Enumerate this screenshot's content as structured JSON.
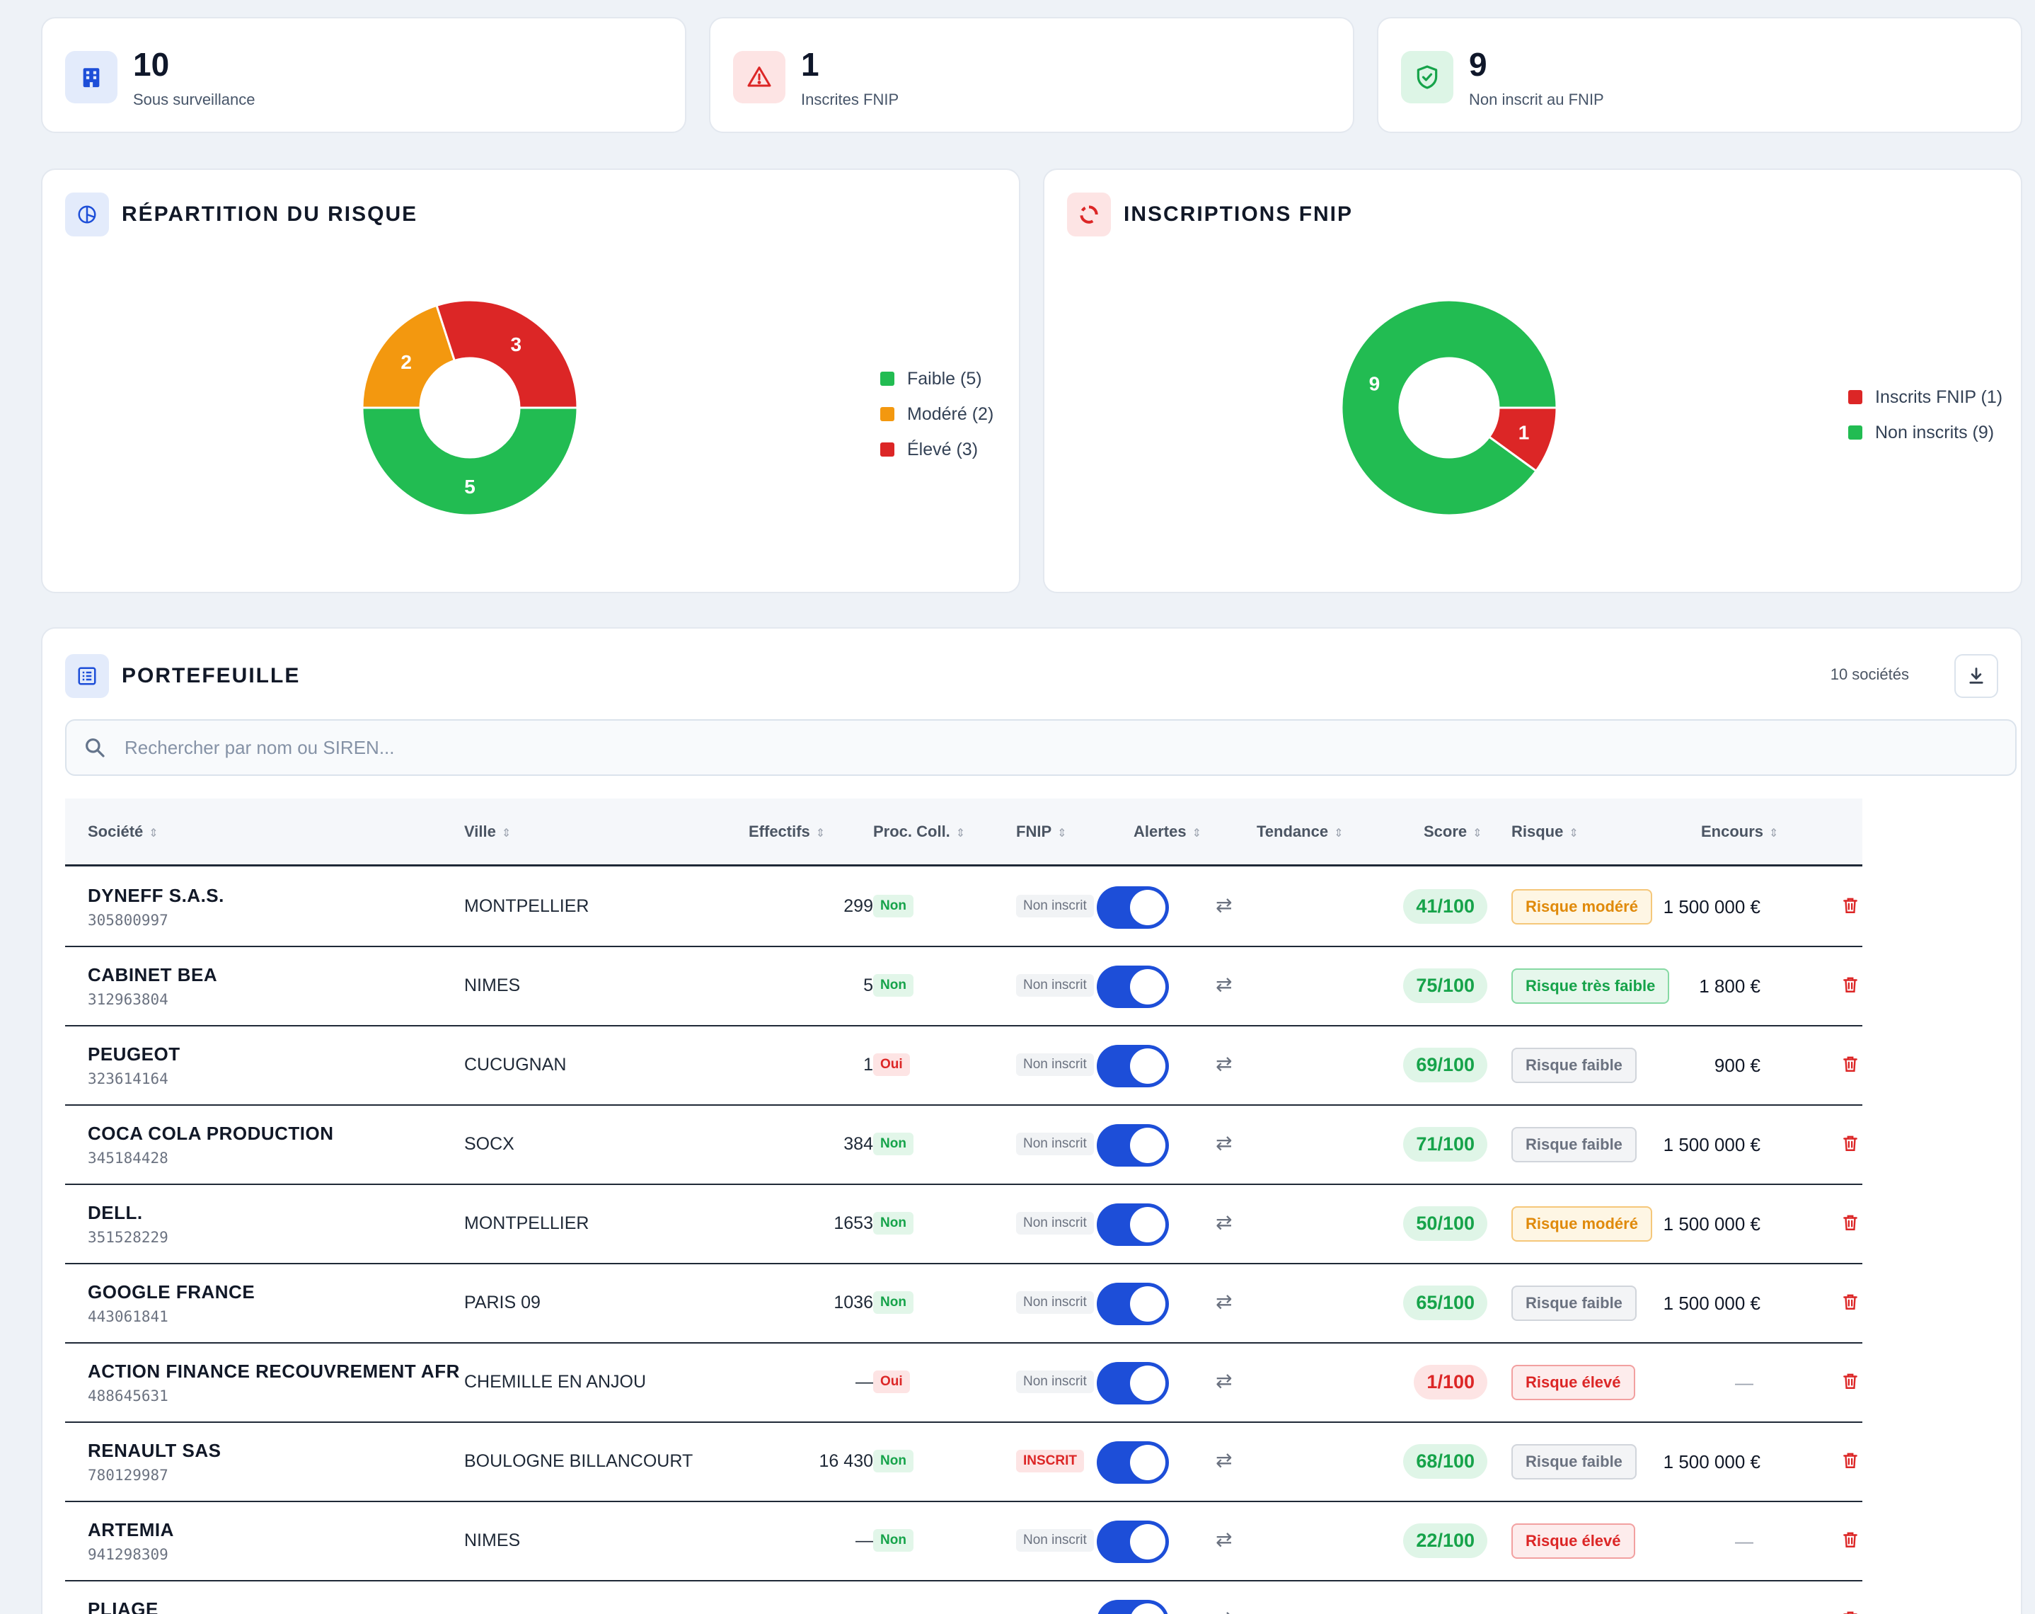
{
  "stats": [
    {
      "value": "10",
      "label": "Sous surveillance",
      "icon": "building-icon",
      "bg": "#e3ebfb",
      "color": "#1d4ed8"
    },
    {
      "value": "1",
      "label": "Inscrites FNIP",
      "icon": "warning-icon",
      "bg": "#fde4e4",
      "color": "#dc2626"
    },
    {
      "value": "9",
      "label": "Non inscrit au FNIP",
      "icon": "shield-check-icon",
      "bg": "#ddf5e6",
      "color": "#16a34a"
    }
  ],
  "risk_section": {
    "title": "RÉPARTITION DU RISQUE"
  },
  "fnip_section": {
    "title": "INSCRIPTIONS FNIP"
  },
  "colors": {
    "green": "#22bc52",
    "orange": "#f3980f",
    "red": "#dc2626",
    "blue": "#1d4ed8"
  },
  "chart_data": [
    {
      "type": "pie",
      "title": "RÉPARTITION DU RISQUE",
      "categories": [
        "Faible (5)",
        "Modéré (2)",
        "Élevé (3)"
      ],
      "values": [
        5,
        2,
        3
      ],
      "colors": [
        "#22bc52",
        "#f3980f",
        "#dc2626"
      ],
      "legend_position": "right"
    },
    {
      "type": "pie",
      "title": "INSCRIPTIONS FNIP",
      "categories": [
        "Inscrits FNIP (1)",
        "Non inscrits (9)"
      ],
      "values": [
        1,
        9
      ],
      "colors": [
        "#dc2626",
        "#22bc52"
      ],
      "legend_position": "right"
    }
  ],
  "portfolio": {
    "title": "PORTEFEUILLE",
    "count_label": "10 sociétés",
    "search_placeholder": "Rechercher par nom ou SIREN...",
    "columns": [
      "Société",
      "Ville",
      "Effectifs",
      "Proc. Coll.",
      "FNIP",
      "Alertes",
      "Tendance",
      "Score",
      "Risque",
      "Encours"
    ],
    "rows": [
      {
        "name": "DYNEFF S.A.S.",
        "siren": "305800997",
        "city": "MONTPELLIER",
        "effectifs": "299",
        "proc": "Non",
        "fnip": "Non inscrit",
        "alerts_on": true,
        "score": "41/100",
        "score_level": "ok",
        "risk": "Risque modéré",
        "risk_level": "moderate",
        "amount": "1 500 000 €"
      },
      {
        "name": "CABINET BEA",
        "siren": "312963804",
        "city": "NIMES",
        "effectifs": "5",
        "proc": "Non",
        "fnip": "Non inscrit",
        "alerts_on": true,
        "score": "75/100",
        "score_level": "ok",
        "risk": "Risque très faible",
        "risk_level": "very-low",
        "amount": "1 800 €"
      },
      {
        "name": "PEUGEOT",
        "siren": "323614164",
        "city": "CUCUGNAN",
        "effectifs": "1",
        "proc": "Oui",
        "fnip": "Non inscrit",
        "alerts_on": true,
        "score": "69/100",
        "score_level": "ok",
        "risk": "Risque faible",
        "risk_level": "low",
        "amount": "900 €"
      },
      {
        "name": "COCA COLA PRODUCTION",
        "siren": "345184428",
        "city": "SOCX",
        "effectifs": "384",
        "proc": "Non",
        "fnip": "Non inscrit",
        "alerts_on": true,
        "score": "71/100",
        "score_level": "ok",
        "risk": "Risque faible",
        "risk_level": "low",
        "amount": "1 500 000 €"
      },
      {
        "name": "DELL.",
        "siren": "351528229",
        "city": "MONTPELLIER",
        "effectifs": "1653",
        "proc": "Non",
        "fnip": "Non inscrit",
        "alerts_on": true,
        "score": "50/100",
        "score_level": "ok",
        "risk": "Risque modéré",
        "risk_level": "moderate",
        "amount": "1 500 000 €"
      },
      {
        "name": "GOOGLE FRANCE",
        "siren": "443061841",
        "city": "PARIS 09",
        "effectifs": "1036",
        "proc": "Non",
        "fnip": "Non inscrit",
        "alerts_on": true,
        "score": "65/100",
        "score_level": "ok",
        "risk": "Risque faible",
        "risk_level": "low",
        "amount": "1 500 000 €"
      },
      {
        "name": "ACTION FINANCE RECOUVREMENT AFR",
        "siren": "488645631",
        "city": "CHEMILLE EN ANJOU",
        "effectifs": "—",
        "proc": "Oui",
        "fnip": "Non inscrit",
        "alerts_on": true,
        "score": "1/100",
        "score_level": "bad",
        "risk": "Risque élevé",
        "risk_level": "high",
        "amount": "—"
      },
      {
        "name": "RENAULT SAS",
        "siren": "780129987",
        "city": "BOULOGNE BILLANCOURT",
        "effectifs": "16 430",
        "proc": "Non",
        "fnip": "INSCRIT",
        "alerts_on": true,
        "score": "68/100",
        "score_level": "ok",
        "risk": "Risque faible",
        "risk_level": "low",
        "amount": "1 500 000 €"
      },
      {
        "name": "ARTEMIA",
        "siren": "941298309",
        "city": "NIMES",
        "effectifs": "—",
        "proc": "Non",
        "fnip": "Non inscrit",
        "alerts_on": true,
        "score": "22/100",
        "score_level": "ok",
        "risk": "Risque élevé",
        "risk_level": "high",
        "amount": "—"
      },
      {
        "name": "PLIAGE",
        "siren": "",
        "city": "",
        "effectifs": "",
        "proc": "",
        "fnip": "",
        "alerts_on": true,
        "score": "",
        "score_level": "ok",
        "risk": "",
        "risk_level": "high",
        "amount": ""
      }
    ]
  }
}
